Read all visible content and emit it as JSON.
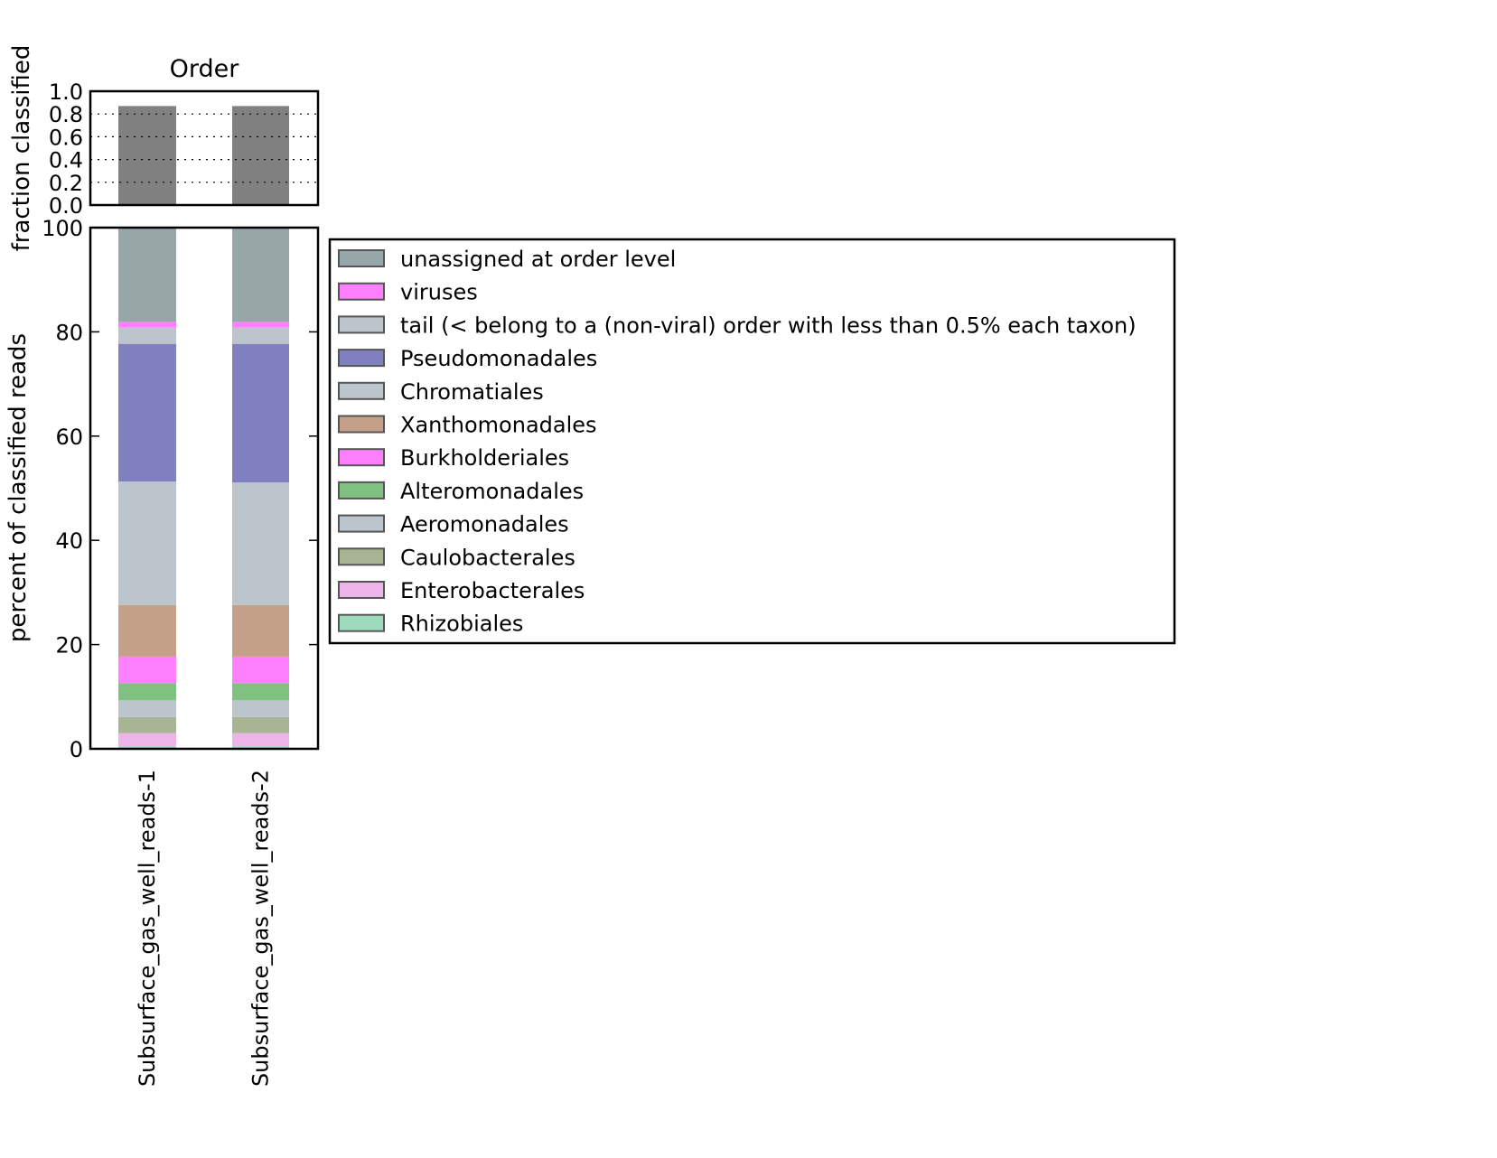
{
  "chart_data": [
    {
      "type": "bar",
      "title": "Order",
      "ylabel": "fraction classified",
      "ylim": [
        0,
        1.0
      ],
      "yticks": [
        "0.0",
        "0.2",
        "0.4",
        "0.6",
        "0.8",
        "1.0"
      ],
      "grid": "horizontal dotted",
      "categories": [
        "Subsurface_gas_well_reads-1",
        "Subsurface_gas_well_reads-2"
      ],
      "values": [
        0.87,
        0.87
      ],
      "color": "#808080"
    },
    {
      "type": "stacked-bar",
      "ylabel": "percent of classified reads",
      "ylim": [
        0,
        100
      ],
      "yticks": [
        "0",
        "20",
        "40",
        "60",
        "80",
        "100"
      ],
      "categories": [
        "Subsurface_gas_well_reads-1",
        "Subsurface_gas_well_reads-2"
      ],
      "legend_position": "right",
      "series": [
        {
          "name": "Rhizobiales",
          "color": "#9cdcbc",
          "values": [
            0.5,
            0.5
          ]
        },
        {
          "name": "Enterobacterales",
          "color": "#ecb4e8",
          "values": [
            2.5,
            2.5
          ]
        },
        {
          "name": "Caulobacterales",
          "color": "#a8b494",
          "values": [
            3.1,
            3.1
          ]
        },
        {
          "name": "Aeromonadales",
          "color": "#bcc4cc",
          "values": [
            3.2,
            3.2
          ]
        },
        {
          "name": "Alteromonadales",
          "color": "#80c080",
          "values": [
            3.3,
            3.3
          ]
        },
        {
          "name": "Burkholderiales",
          "color": "#ff80ff",
          "values": [
            5.1,
            5.1
          ]
        },
        {
          "name": "Xanthomonadales",
          "color": "#c4a088",
          "values": [
            9.9,
            9.9
          ]
        },
        {
          "name": "Chromatiales",
          "color": "#bcc4cc",
          "values": [
            23.7,
            23.5
          ]
        },
        {
          "name": "Pseudomonadales",
          "color": "#8080c0",
          "values": [
            26.4,
            26.6
          ]
        },
        {
          "name": "tail (< belong to a (non-viral) order with less than 0.5% each taxon)",
          "color": "#bcc4cc",
          "values": [
            3.1,
            3.1
          ]
        },
        {
          "name": "viruses",
          "color": "#ff80ff",
          "values": [
            1.1,
            1.1
          ]
        },
        {
          "name": "unassigned at order level",
          "color": "#98a8a8",
          "values": [
            18.1,
            18.1
          ]
        }
      ]
    }
  ]
}
